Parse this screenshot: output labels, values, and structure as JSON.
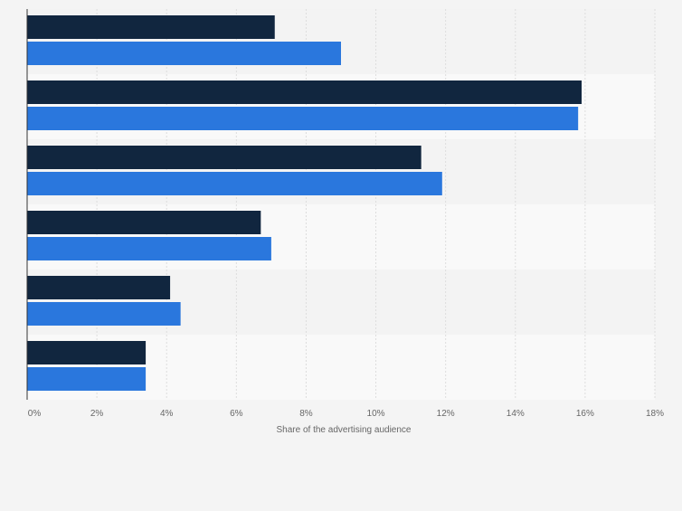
{
  "chart_data": {
    "type": "bar",
    "orientation": "horizontal",
    "xlabel": "Share of the advertising audience",
    "ylabel": "",
    "xlim": [
      0,
      18
    ],
    "xticks": [
      0,
      2,
      4,
      6,
      8,
      10,
      12,
      14,
      16,
      18
    ],
    "tick_suffix": "%",
    "grid": true,
    "categories": [
      "",
      "",
      "",
      "",
      "",
      ""
    ],
    "series": [
      {
        "color": "#11263f",
        "values": [
          7.1,
          15.9,
          11.3,
          6.7,
          4.1,
          3.4
        ]
      },
      {
        "color": "#2a77dd",
        "values": [
          9.0,
          15.8,
          11.9,
          7.0,
          4.4,
          3.4
        ]
      }
    ]
  }
}
